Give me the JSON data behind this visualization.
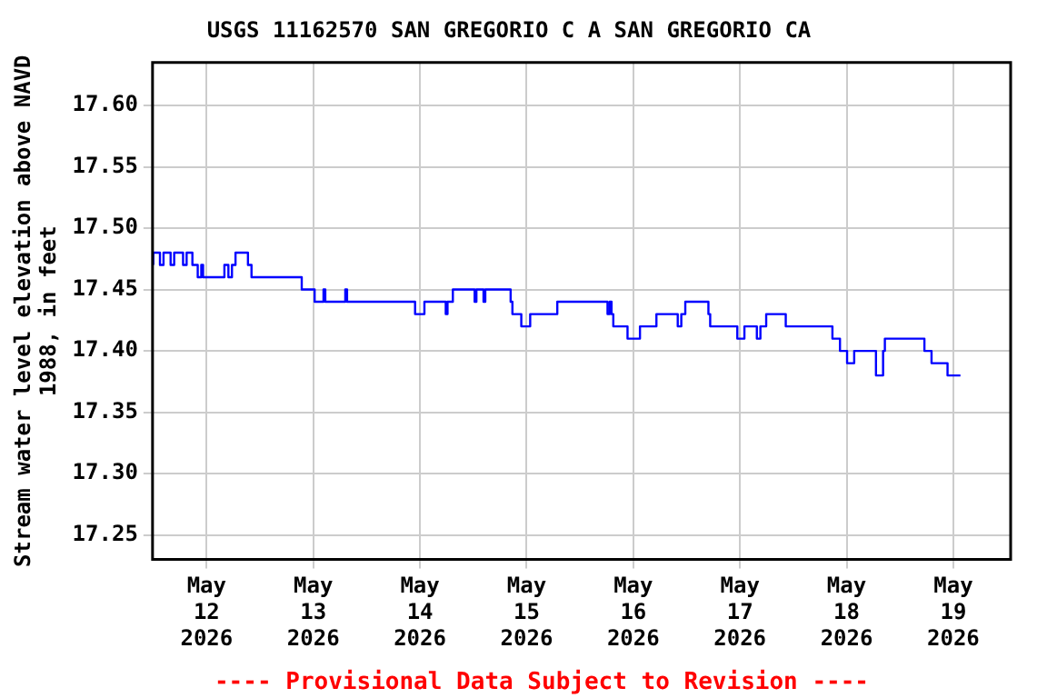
{
  "chart_data": {
    "type": "step",
    "title": "USGS 11162570 SAN GREGORIO C A SAN GREGORIO CA",
    "ylabel": "Stream water level elevation above NAVD 1988, in feet",
    "annotations": [
      "---- Provisional Data Subject to Revision ----"
    ],
    "x": [
      "2026-05-11T12:00",
      "2026-05-11T13:30",
      "2026-05-11T14:18",
      "2026-05-11T15:54",
      "2026-05-11T16:42",
      "2026-05-11T18:42",
      "2026-05-11T19:30",
      "2026-05-11T20:48",
      "2026-05-11T22:00",
      "2026-05-11T22:48",
      "2026-05-11T23:12",
      "2026-05-12T04:00",
      "2026-05-12T04:54",
      "2026-05-12T05:42",
      "2026-05-12T06:30",
      "2026-05-12T09:18",
      "2026-05-12T10:06",
      "2026-05-12T21:24",
      "2026-05-13T00:18",
      "2026-05-13T02:18",
      "2026-05-13T02:42",
      "2026-05-13T07:12",
      "2026-05-13T07:36",
      "2026-05-13T22:54",
      "2026-05-14T01:00",
      "2026-05-14T05:48",
      "2026-05-14T06:12",
      "2026-05-14T07:24",
      "2026-05-14T12:18",
      "2026-05-14T12:42",
      "2026-05-14T14:18",
      "2026-05-14T14:42",
      "2026-05-14T20:24",
      "2026-05-14T20:48",
      "2026-05-14T22:48",
      "2026-05-15T00:48",
      "2026-05-15T06:54",
      "2026-05-15T18:12",
      "2026-05-15T18:42",
      "2026-05-15T19:06",
      "2026-05-15T19:30",
      "2026-05-15T22:42",
      "2026-05-16T01:30",
      "2026-05-16T05:12",
      "2026-05-16T10:00",
      "2026-05-16T10:48",
      "2026-05-16T11:42",
      "2026-05-16T16:54",
      "2026-05-16T17:18",
      "2026-05-16T23:24",
      "2026-05-17T01:00",
      "2026-05-17T03:48",
      "2026-05-17T04:36",
      "2026-05-17T05:54",
      "2026-05-17T10:18",
      "2026-05-17T20:48",
      "2026-05-17T22:30",
      "2026-05-18T00:06",
      "2026-05-18T01:42",
      "2026-05-18T06:36",
      "2026-05-18T08:12",
      "2026-05-18T08:36",
      "2026-05-18T17:30",
      "2026-05-18T19:06",
      "2026-05-18T22:42",
      "2026-05-19T00:24",
      "2026-05-19T01:36"
    ],
    "series": [
      {
        "color": "#0000ff",
        "values": [
          17.47,
          17.48,
          17.47,
          17.48,
          17.47,
          17.48,
          17.47,
          17.48,
          17.47,
          17.46,
          17.47,
          17.46,
          17.47,
          17.46,
          17.47,
          17.48,
          17.47,
          17.46,
          17.45,
          17.44,
          17.45,
          17.44,
          17.45,
          17.44,
          17.43,
          17.44,
          17.43,
          17.44,
          17.45,
          17.44,
          17.45,
          17.44,
          17.45,
          17.44,
          17.43,
          17.42,
          17.43,
          17.44,
          17.43,
          17.44,
          17.43,
          17.42,
          17.41,
          17.42,
          17.43,
          17.42,
          17.43,
          17.44,
          17.43,
          17.42,
          17.41,
          17.42,
          17.41,
          17.42,
          17.43,
          17.42,
          17.41,
          17.4,
          17.39,
          17.4,
          17.38,
          17.4,
          17.41,
          17.4,
          17.39,
          17.38,
          17.38
        ]
      }
    ],
    "xlim": [
      "2026-05-11T11:50",
      "2026-05-19T12:54"
    ],
    "xticks": [
      {
        "value": "2026-05-12",
        "label": "May\n12\n2026"
      },
      {
        "value": "2026-05-13",
        "label": "May\n13\n2026"
      },
      {
        "value": "2026-05-14",
        "label": "May\n14\n2026"
      },
      {
        "value": "2026-05-15",
        "label": "May\n15\n2026"
      },
      {
        "value": "2026-05-16",
        "label": "May\n16\n2026"
      },
      {
        "value": "2026-05-17",
        "label": "May\n17\n2026"
      },
      {
        "value": "2026-05-18",
        "label": "May\n18\n2026"
      },
      {
        "value": "2026-05-19",
        "label": "May\n19\n2026"
      }
    ],
    "ylim": [
      17.23,
      17.635
    ],
    "yticks": [
      {
        "value": 17.25,
        "label": "17.25"
      },
      {
        "value": 17.3,
        "label": "17.30"
      },
      {
        "value": 17.35,
        "label": "17.35"
      },
      {
        "value": 17.4,
        "label": "17.40"
      },
      {
        "value": 17.45,
        "label": "17.45"
      },
      {
        "value": 17.5,
        "label": "17.50"
      },
      {
        "value": 17.55,
        "label": "17.55"
      },
      {
        "value": 17.6,
        "label": "17.60"
      }
    ],
    "grid": true,
    "legend": false,
    "marker": "none",
    "line_style": "solid"
  }
}
